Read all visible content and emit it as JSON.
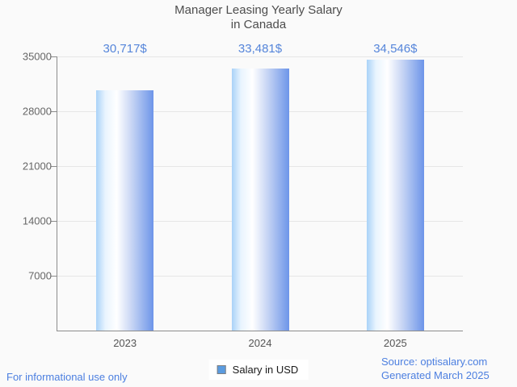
{
  "title": {
    "line1": "Manager Leasing Yearly Salary",
    "line2": "in Canada"
  },
  "chart_data": {
    "type": "bar",
    "title": "Manager Leasing Yearly Salary in Canada",
    "categories": [
      "2023",
      "2024",
      "2025"
    ],
    "values": [
      30717,
      33481,
      34546
    ],
    "value_labels": [
      "30,717$",
      "33,481$",
      "34,546$"
    ],
    "series_name": "Salary in USD",
    "xlabel": "",
    "ylabel": "",
    "ylim": [
      0,
      35000
    ],
    "yticks": [
      7000,
      14000,
      21000,
      28000,
      35000
    ],
    "grid": "horizontal",
    "legend_position": "bottom-center"
  },
  "legend": {
    "label": "Salary in USD"
  },
  "footer": {
    "left": "For informational use only",
    "source": "Source: optisalary.com",
    "generated": "Generated March 2025"
  },
  "colors": {
    "background": "#fafafa",
    "bar_gradient_left": "#a9d2f8",
    "bar_gradient_mid": "#ffffff",
    "bar_gradient_right": "#6d95e9",
    "value_label_text": "#5585da",
    "footer_text": "#4c7fe0",
    "axis_line": "#8c8c8c",
    "grid_line": "#e6e6e6",
    "title_text": "#4d4d4d",
    "legend_swatch": "#5b9ce0"
  }
}
